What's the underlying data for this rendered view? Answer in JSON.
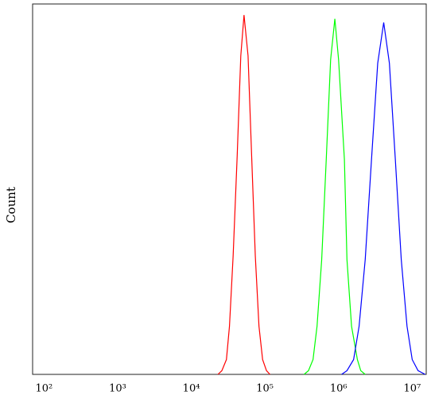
{
  "chart_data": {
    "type": "line",
    "xscale": "log",
    "y_label": "Count",
    "xlim": [
      70,
      15500000
    ],
    "ylim": [
      0,
      100
    ],
    "xticks": [
      {
        "value": 100,
        "label": "10²"
      },
      {
        "value": 1000,
        "label": "10³"
      },
      {
        "value": 10000,
        "label": "10⁴"
      },
      {
        "value": 100000,
        "label": "10⁵"
      },
      {
        "value": 1000000,
        "label": "10⁶"
      },
      {
        "value": 10000000,
        "label": "10⁷"
      }
    ],
    "series": [
      {
        "color": "#ff0000",
        "x": [
          23000,
          26000,
          30000,
          33000,
          37000,
          42000,
          47000,
          52000,
          59000,
          66000,
          74000,
          83000,
          93000,
          105000,
          117000
        ],
        "values": [
          0,
          1,
          4,
          13,
          32,
          59,
          86,
          97,
          86,
          59,
          32,
          13,
          4,
          1,
          0
        ]
      },
      {
        "color": "#00ff00",
        "x": [
          340000,
          390000,
          450000,
          510000,
          590000,
          680000,
          780000,
          890000,
          1000000,
          1200000,
          1300000,
          1500000,
          1800000,
          2000000,
          2300000
        ],
        "values": [
          0,
          1,
          4,
          13,
          31,
          58,
          85,
          96,
          85,
          58,
          31,
          13,
          4,
          1,
          0
        ]
      },
      {
        "color": "#0000ff",
        "x": [
          1100000,
          1300000,
          1600000,
          1900000,
          2300000,
          2800000,
          3400000,
          4100000,
          4900000,
          5900000,
          7100000,
          8500000,
          10000000,
          12000000,
          15000000
        ],
        "values": [
          0,
          1,
          4,
          13,
          31,
          58,
          84,
          95,
          84,
          58,
          31,
          13,
          4,
          1,
          0
        ]
      }
    ]
  }
}
